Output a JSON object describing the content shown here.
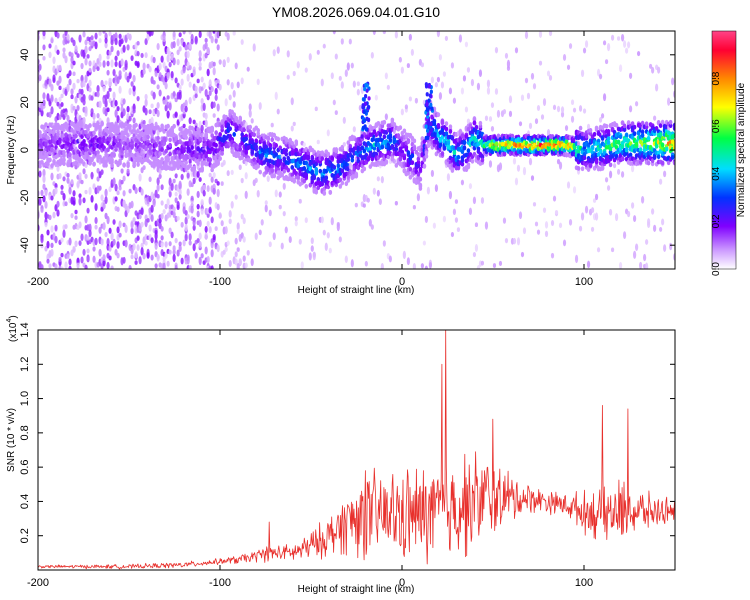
{
  "title": "YM08.2026.069.04.01.G10",
  "colors": {
    "signal": "#e8302c",
    "axis": "#000000",
    "grid": "#dddddd"
  },
  "chart_data": [
    {
      "type": "heatmap",
      "name": "spectrogram",
      "xlabel": "Height of straight line (km)",
      "ylabel": "Frequency (Hz)",
      "xlim": [
        -200,
        150
      ],
      "ylim": [
        -50,
        50
      ],
      "xticks": [
        -200,
        -100,
        0,
        100
      ],
      "xtick_labels": [
        "-200",
        "-100",
        "0",
        "100"
      ],
      "yticks": [
        -40,
        -20,
        0,
        20,
        40
      ],
      "ytick_labels": [
        "-40",
        "-20",
        "0",
        "20",
        "40"
      ],
      "colorbar": {
        "label": "Normalized spectral amplitude",
        "range": [
          0,
          1
        ],
        "ticks": [
          0,
          0.2,
          0.4,
          0.6,
          0.8
        ],
        "tick_labels": [
          "0.0",
          "0.2",
          "0.4",
          "0.6",
          "0.8"
        ],
        "stops": [
          "#ffffff",
          "#cc99ff",
          "#7f00ff",
          "#0033ff",
          "#00ddff",
          "#00ff44",
          "#ffff00",
          "#ff8800",
          "#ff0033",
          "#ff4488"
        ]
      },
      "ridge": {
        "description": "dominant frequency band vs height",
        "x": [
          -200,
          -175,
          -150,
          -125,
          -105,
          -95,
          -85,
          -75,
          -65,
          -55,
          -45,
          -35,
          -25,
          -15,
          -5,
          0,
          5,
          10,
          15,
          20,
          25,
          30,
          35,
          40,
          45,
          50,
          60,
          70,
          80,
          90,
          100,
          110,
          120,
          130,
          140,
          150
        ],
        "y": [
          2,
          3,
          2,
          1,
          0,
          8,
          3,
          -2,
          -3,
          -6,
          -10,
          -8,
          -2,
          2,
          4,
          0,
          -3,
          -8,
          12,
          6,
          3,
          -2,
          0,
          5,
          2,
          2,
          2,
          2,
          2,
          2,
          0,
          1,
          3,
          3,
          3,
          3
        ],
        "amplitude": [
          0.2,
          0.3,
          0.2,
          0.25,
          0.3,
          0.4,
          0.35,
          0.45,
          0.4,
          0.45,
          0.5,
          0.45,
          0.4,
          0.5,
          0.45,
          0.3,
          0.4,
          0.3,
          0.45,
          0.5,
          0.55,
          0.5,
          0.5,
          0.55,
          0.6,
          0.9,
          0.9,
          0.95,
          0.95,
          0.9,
          0.5,
          0.6,
          0.65,
          0.7,
          0.75,
          0.9
        ]
      }
    },
    {
      "type": "line",
      "name": "snr",
      "xlabel": "Height of straight line (km)",
      "ylabel": "SNR (10 * v/v)",
      "multiplier_label": "(x10",
      "multiplier_exponent": "4",
      "xlim": [
        -200,
        150
      ],
      "ylim": [
        0,
        1.4
      ],
      "xticks": [
        -200,
        -100,
        0,
        100
      ],
      "xtick_labels": [
        "-200",
        "-100",
        "0",
        "100"
      ],
      "yticks": [
        0.2,
        0.4,
        0.6,
        0.8,
        1.0,
        1.2,
        1.4
      ],
      "ytick_labels": [
        "0.2",
        "0.4",
        "0.6",
        "0.8",
        "1.0",
        "1.2",
        "1.4"
      ],
      "envelope": {
        "x": [
          -200,
          -150,
          -120,
          -110,
          -100,
          -90,
          -80,
          -75,
          -70,
          -60,
          -50,
          -40,
          -30,
          -25,
          -20,
          -10,
          0,
          10,
          20,
          25,
          30,
          40,
          45,
          50,
          60,
          70,
          80,
          90,
          100,
          110,
          120,
          130,
          140,
          150
        ],
        "base": [
          0.02,
          0.02,
          0.03,
          0.04,
          0.05,
          0.06,
          0.08,
          0.1,
          0.1,
          0.1,
          0.14,
          0.2,
          0.28,
          0.3,
          0.32,
          0.32,
          0.32,
          0.32,
          0.34,
          0.36,
          0.38,
          0.4,
          0.42,
          0.42,
          0.42,
          0.42,
          0.4,
          0.38,
          0.34,
          0.32,
          0.34,
          0.34,
          0.34,
          0.36
        ],
        "spread": [
          0.01,
          0.015,
          0.02,
          0.02,
          0.02,
          0.03,
          0.04,
          0.06,
          0.05,
          0.06,
          0.1,
          0.14,
          0.22,
          0.28,
          0.3,
          0.3,
          0.32,
          0.34,
          0.36,
          0.38,
          0.38,
          0.34,
          0.32,
          0.26,
          0.18,
          0.1,
          0.08,
          0.08,
          0.14,
          0.2,
          0.22,
          0.16,
          0.1,
          0.08
        ]
      },
      "peaks": [
        {
          "x": 24,
          "y": 1.4
        },
        {
          "x": 22,
          "y": 1.2
        },
        {
          "x": 50,
          "y": 0.88
        },
        {
          "x": 110,
          "y": 0.96
        },
        {
          "x": 124,
          "y": 0.94
        },
        {
          "x": -73,
          "y": 0.28
        },
        {
          "x": -20,
          "y": 0.58
        }
      ]
    }
  ]
}
